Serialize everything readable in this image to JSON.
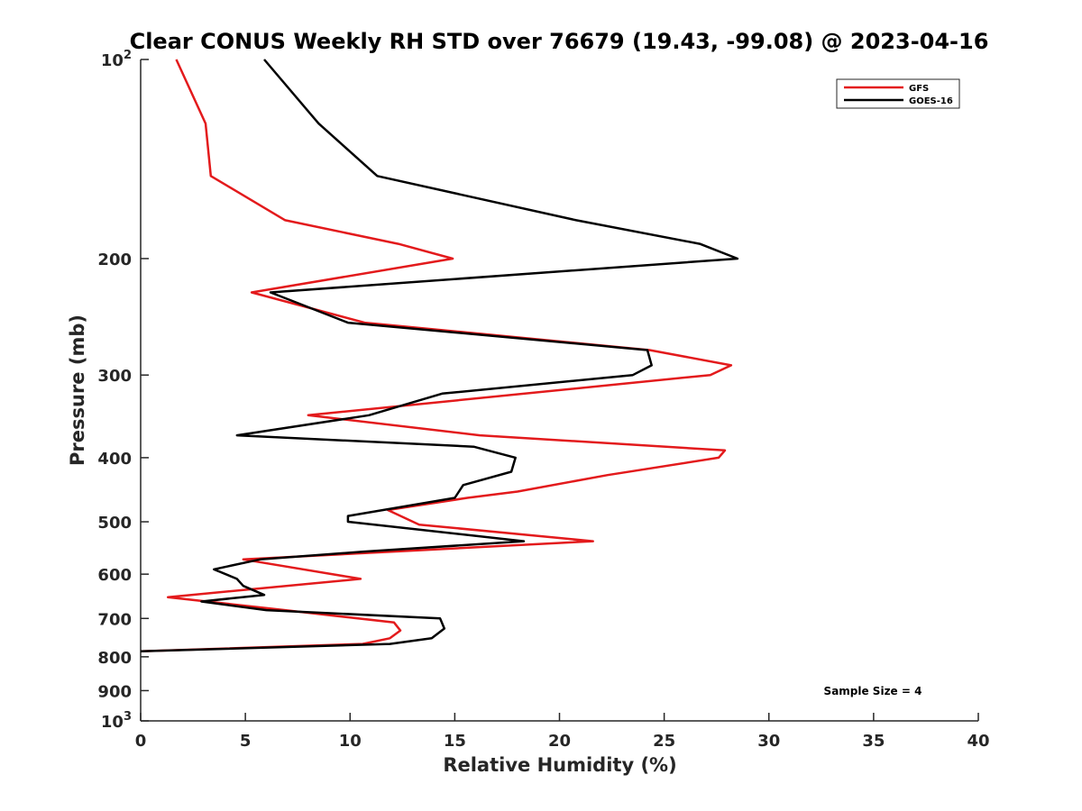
{
  "chart_data": {
    "type": "line",
    "title": "Clear CONUS Weekly RH STD over 76679 (19.43, -99.08) @ 2023-04-16",
    "xlabel": "Relative Humidity (%)",
    "ylabel": "Pressure (mb)",
    "xlim": [
      0,
      40
    ],
    "ylim": [
      100,
      1000
    ],
    "y_scale": "log",
    "y_reversed": true,
    "x_ticks": [
      0,
      5,
      10,
      15,
      20,
      25,
      30,
      35,
      40
    ],
    "x_tick_labels": [
      "0",
      "5",
      "10",
      "15",
      "20",
      "25",
      "30",
      "35",
      "40"
    ],
    "y_ticks": [
      100,
      200,
      300,
      400,
      500,
      600,
      700,
      800,
      900,
      1000
    ],
    "y_tick_labels": [
      {
        "base": "10",
        "sup": "2"
      },
      {
        "base": "200",
        "sup": ""
      },
      {
        "base": "300",
        "sup": ""
      },
      {
        "base": "400",
        "sup": ""
      },
      {
        "base": "500",
        "sup": ""
      },
      {
        "base": "600",
        "sup": ""
      },
      {
        "base": "700",
        "sup": ""
      },
      {
        "base": "800",
        "sup": ""
      },
      {
        "base": "900",
        "sup": ""
      },
      {
        "base": "10",
        "sup": "3"
      }
    ],
    "grid": false,
    "legend_position": "top-right",
    "annotation": "Sample Size = 4",
    "series": [
      {
        "name": "GFS",
        "color": "#e31a1c",
        "points": [
          [
            1.7,
            100
          ],
          [
            3.1,
            125
          ],
          [
            3.35,
            150
          ],
          [
            6.9,
            175
          ],
          [
            12.3,
            190
          ],
          [
            14.9,
            200
          ],
          [
            5.3,
            225
          ],
          [
            10.7,
            250
          ],
          [
            24.3,
            275
          ],
          [
            28.2,
            290
          ],
          [
            27.2,
            300
          ],
          [
            8.0,
            345
          ],
          [
            16.2,
            370
          ],
          [
            27.9,
            390
          ],
          [
            27.6,
            400
          ],
          [
            22.3,
            425
          ],
          [
            18.0,
            450
          ],
          [
            15.6,
            460
          ],
          [
            11.8,
            480
          ],
          [
            13.3,
            505
          ],
          [
            21.6,
            535
          ],
          [
            4.9,
            570
          ],
          [
            10.5,
            610
          ],
          [
            1.3,
            650
          ],
          [
            6.9,
            680
          ],
          [
            12.1,
            710
          ],
          [
            12.4,
            730
          ],
          [
            11.9,
            750
          ],
          [
            10.6,
            765
          ],
          [
            0.0,
            785
          ]
        ]
      },
      {
        "name": "GOES-16",
        "color": "#000000",
        "points": [
          [
            5.9,
            100
          ],
          [
            8.5,
            125
          ],
          [
            11.3,
            150
          ],
          [
            20.8,
            175
          ],
          [
            26.7,
            190
          ],
          [
            28.5,
            200
          ],
          [
            6.2,
            225
          ],
          [
            9.9,
            250
          ],
          [
            24.2,
            275
          ],
          [
            24.4,
            290
          ],
          [
            23.5,
            300
          ],
          [
            14.4,
            320
          ],
          [
            10.9,
            345
          ],
          [
            4.6,
            370
          ],
          [
            15.9,
            385
          ],
          [
            17.9,
            400
          ],
          [
            17.7,
            420
          ],
          [
            15.4,
            440
          ],
          [
            15.0,
            460
          ],
          [
            9.9,
            490
          ],
          [
            9.9,
            500
          ],
          [
            18.3,
            535
          ],
          [
            10.6,
            555
          ],
          [
            5.7,
            570
          ],
          [
            3.5,
            590
          ],
          [
            4.6,
            610
          ],
          [
            4.9,
            625
          ],
          [
            5.9,
            645
          ],
          [
            2.9,
            660
          ],
          [
            6.0,
            680
          ],
          [
            14.3,
            700
          ],
          [
            14.5,
            725
          ],
          [
            13.9,
            750
          ],
          [
            11.9,
            765
          ],
          [
            0.0,
            785
          ]
        ]
      }
    ]
  }
}
